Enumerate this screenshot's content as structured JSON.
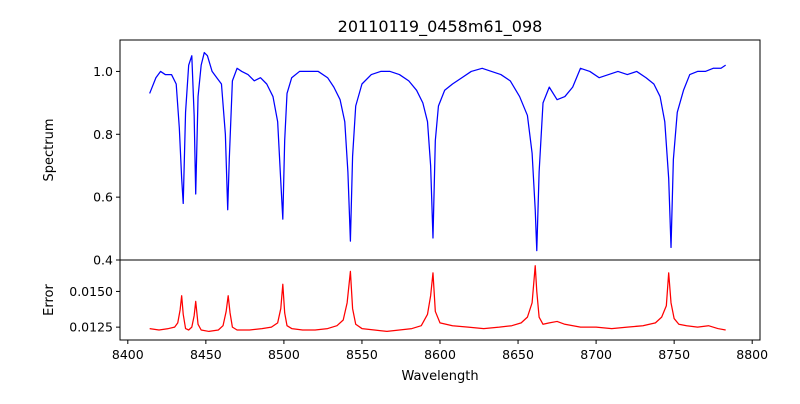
{
  "chart_data": {
    "type": "line",
    "title": "20110119_0458m61_098",
    "xlabel": "Wavelength",
    "xlim": [
      8395,
      8805
    ],
    "xticks": [
      8400,
      8450,
      8500,
      8550,
      8600,
      8650,
      8700,
      8750,
      8800
    ],
    "colors": {
      "spectrum": "#0000ff",
      "error": "#ff0000"
    },
    "grid": false,
    "legend": "none",
    "panels": [
      {
        "name": "spectrum",
        "ylabel": "Spectrum",
        "ylim": [
          0.4,
          1.1
        ],
        "yticks": [
          0.4,
          0.6,
          0.8,
          1.0
        ],
        "ytick_labels": [
          "0.4",
          "0.6",
          "0.8",
          "1.0"
        ],
        "x": [
          8414,
          8418,
          8421,
          8424,
          8428,
          8431,
          8433,
          8434.5,
          8435.5,
          8437,
          8439,
          8441,
          8442.5,
          8443.5,
          8445,
          8447,
          8449,
          8451,
          8454,
          8457,
          8460,
          8462.5,
          8464,
          8465,
          8467,
          8470,
          8473,
          8477,
          8481,
          8485,
          8489,
          8493,
          8496,
          8498,
          8499.3,
          8500.5,
          8502,
          8505,
          8510,
          8516,
          8522,
          8528,
          8532,
          8536,
          8539,
          8541,
          8542.6,
          8544,
          8546,
          8550,
          8556,
          8562,
          8568,
          8574,
          8580,
          8585,
          8589,
          8592,
          8594,
          8595.5,
          8597,
          8599,
          8603,
          8608,
          8614,
          8620,
          8627,
          8633,
          8639,
          8645,
          8651,
          8656,
          8659,
          8661,
          8662,
          8663.5,
          8666,
          8670,
          8675,
          8680,
          8685,
          8690,
          8696,
          8702,
          8708,
          8714,
          8720,
          8726,
          8732,
          8737,
          8741,
          8744,
          8746.5,
          8748,
          8749.5,
          8752,
          8756,
          8760,
          8765,
          8770,
          8775,
          8780,
          8783
        ],
        "y": [
          0.93,
          0.98,
          1.0,
          0.99,
          0.99,
          0.96,
          0.82,
          0.66,
          0.58,
          0.87,
          1.02,
          1.05,
          0.86,
          0.61,
          0.92,
          1.02,
          1.06,
          1.05,
          1.0,
          0.98,
          0.96,
          0.8,
          0.56,
          0.72,
          0.97,
          1.01,
          1.0,
          0.99,
          0.97,
          0.98,
          0.96,
          0.92,
          0.84,
          0.65,
          0.53,
          0.78,
          0.93,
          0.98,
          1.0,
          1.0,
          1.0,
          0.98,
          0.95,
          0.91,
          0.84,
          0.68,
          0.46,
          0.73,
          0.89,
          0.96,
          0.99,
          1.0,
          1.0,
          0.99,
          0.97,
          0.94,
          0.9,
          0.84,
          0.7,
          0.47,
          0.78,
          0.89,
          0.94,
          0.96,
          0.98,
          1.0,
          1.01,
          1.0,
          0.99,
          0.97,
          0.92,
          0.86,
          0.74,
          0.56,
          0.43,
          0.68,
          0.9,
          0.95,
          0.91,
          0.92,
          0.95,
          1.01,
          1.0,
          0.98,
          0.99,
          1.0,
          0.99,
          1.0,
          0.98,
          0.96,
          0.92,
          0.84,
          0.66,
          0.44,
          0.72,
          0.87,
          0.94,
          0.99,
          1.0,
          1.0,
          1.01,
          1.01,
          1.02
        ]
      },
      {
        "name": "error",
        "ylabel": "Error",
        "ylim": [
          0.0116,
          0.0172
        ],
        "yticks": [
          0.0125,
          0.015
        ],
        "ytick_labels": [
          "0.0125",
          "0.0150"
        ],
        "x": [
          8414,
          8420,
          8426,
          8430,
          8432,
          8433.5,
          8434.5,
          8435.5,
          8437,
          8439,
          8441,
          8442.5,
          8443.5,
          8445,
          8447,
          8452,
          8458,
          8461,
          8463,
          8464.3,
          8465.5,
          8467,
          8470,
          8478,
          8486,
          8492,
          8496,
          8498,
          8499.3,
          8500.5,
          8502,
          8505,
          8512,
          8520,
          8528,
          8534,
          8538,
          8540.5,
          8542.6,
          8544,
          8546,
          8550,
          8558,
          8566,
          8574,
          8582,
          8588,
          8592,
          8594,
          8595.5,
          8597,
          8600,
          8608,
          8618,
          8628,
          8638,
          8646,
          8652,
          8656,
          8659,
          8661,
          8662,
          8663.5,
          8666,
          8670,
          8675,
          8680,
          8690,
          8700,
          8710,
          8720,
          8730,
          8738,
          8742,
          8745,
          8746.5,
          8748,
          8750,
          8753,
          8758,
          8765,
          8772,
          8778,
          8783
        ],
        "y": [
          0.0124,
          0.0123,
          0.0124,
          0.0125,
          0.0128,
          0.0137,
          0.0147,
          0.0134,
          0.0124,
          0.0123,
          0.0125,
          0.0133,
          0.0143,
          0.0127,
          0.0123,
          0.0122,
          0.0123,
          0.0126,
          0.0136,
          0.0147,
          0.0135,
          0.0125,
          0.0123,
          0.0123,
          0.0124,
          0.0125,
          0.0128,
          0.0138,
          0.0155,
          0.0135,
          0.0126,
          0.0124,
          0.0123,
          0.0123,
          0.0124,
          0.0126,
          0.013,
          0.0142,
          0.0164,
          0.0138,
          0.0127,
          0.0124,
          0.0123,
          0.0122,
          0.0123,
          0.0124,
          0.0126,
          0.0134,
          0.0147,
          0.0163,
          0.0136,
          0.0128,
          0.0126,
          0.0125,
          0.0124,
          0.0125,
          0.0126,
          0.0128,
          0.0132,
          0.0142,
          0.0168,
          0.015,
          0.0132,
          0.0127,
          0.0128,
          0.0129,
          0.0127,
          0.0125,
          0.0125,
          0.0124,
          0.0125,
          0.0126,
          0.0128,
          0.0132,
          0.014,
          0.0163,
          0.0142,
          0.0131,
          0.0127,
          0.0126,
          0.0125,
          0.0126,
          0.0124,
          0.0123
        ]
      }
    ]
  }
}
